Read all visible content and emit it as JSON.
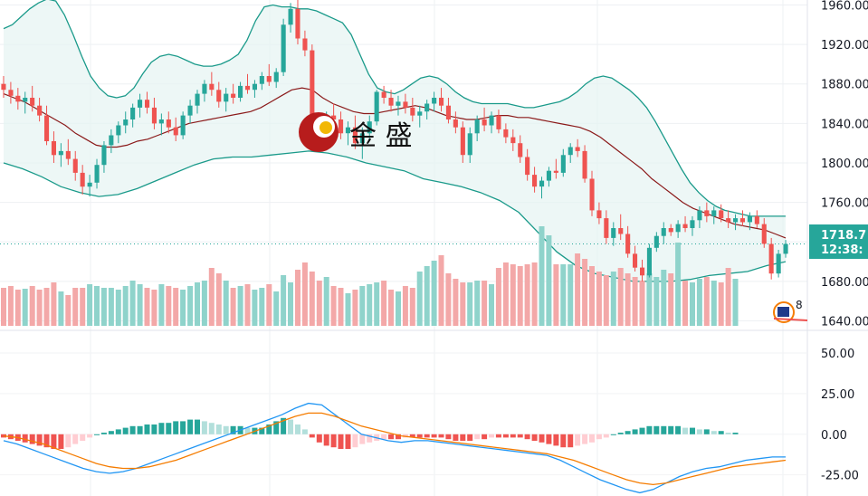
{
  "watermark": {
    "text": "金 盛"
  },
  "price_tag": {
    "price": "1718.7",
    "countdown": "12:38:"
  },
  "events_badge": {
    "count": "8"
  },
  "colors": {
    "up": "#26a69a",
    "down": "#ef5350",
    "up_vol": "#8fd3cb",
    "down_vol": "#f3a8a8",
    "band": "#1a9a8a",
    "basis": "#8b1a1a",
    "macd": "#2196f3",
    "signal": "#f57c00",
    "hist_up_strong": "#26a69a",
    "hist_up_weak": "#b2dfdb",
    "hist_dn_strong": "#ef5350",
    "hist_dn_weak": "#ffcdd2"
  },
  "chart_data": [
    {
      "type": "candlestick",
      "y_ticks": [
        "1960.00",
        "1920.00",
        "1880.00",
        "1840.00",
        "1800.00",
        "1760.00",
        "1720.00",
        "1680.00",
        "1640.00"
      ],
      "ylim": [
        1635,
        1965
      ],
      "ohlc": [
        [
          1880,
          1888,
          1866,
          1874
        ],
        [
          1874,
          1882,
          1860,
          1868
        ],
        [
          1868,
          1876,
          1854,
          1862
        ],
        [
          1862,
          1872,
          1850,
          1866
        ],
        [
          1866,
          1878,
          1852,
          1858
        ],
        [
          1858,
          1866,
          1842,
          1848
        ],
        [
          1848,
          1858,
          1818,
          1822
        ],
        [
          1822,
          1832,
          1800,
          1808
        ],
        [
          1808,
          1820,
          1796,
          1812
        ],
        [
          1812,
          1824,
          1798,
          1804
        ],
        [
          1804,
          1812,
          1782,
          1790
        ],
        [
          1790,
          1798,
          1768,
          1776
        ],
        [
          1776,
          1788,
          1766,
          1780
        ],
        [
          1780,
          1804,
          1774,
          1798
        ],
        [
          1798,
          1822,
          1790,
          1818
        ],
        [
          1818,
          1834,
          1810,
          1828
        ],
        [
          1828,
          1842,
          1820,
          1838
        ],
        [
          1838,
          1852,
          1830,
          1844
        ],
        [
          1844,
          1860,
          1836,
          1856
        ],
        [
          1856,
          1870,
          1846,
          1864
        ],
        [
          1864,
          1872,
          1850,
          1856
        ],
        [
          1856,
          1866,
          1834,
          1840
        ],
        [
          1840,
          1850,
          1828,
          1844
        ],
        [
          1844,
          1852,
          1830,
          1836
        ],
        [
          1836,
          1846,
          1822,
          1828
        ],
        [
          1828,
          1852,
          1824,
          1848
        ],
        [
          1848,
          1864,
          1840,
          1858
        ],
        [
          1858,
          1874,
          1850,
          1870
        ],
        [
          1870,
          1884,
          1862,
          1880
        ],
        [
          1880,
          1892,
          1868,
          1874
        ],
        [
          1874,
          1882,
          1856,
          1862
        ],
        [
          1862,
          1876,
          1852,
          1870
        ],
        [
          1870,
          1880,
          1860,
          1866
        ],
        [
          1866,
          1882,
          1862,
          1878
        ],
        [
          1878,
          1890,
          1870,
          1874
        ],
        [
          1874,
          1884,
          1866,
          1880
        ],
        [
          1880,
          1892,
          1874,
          1888
        ],
        [
          1888,
          1900,
          1878,
          1882
        ],
        [
          1882,
          1896,
          1876,
          1892
        ],
        [
          1892,
          1946,
          1888,
          1940
        ],
        [
          1940,
          1962,
          1932,
          1956
        ],
        [
          1956,
          1966,
          1920,
          1926
        ],
        [
          1926,
          1934,
          1908,
          1914
        ],
        [
          1914,
          1920,
          1836,
          1842
        ],
        [
          1842,
          1850,
          1826,
          1834
        ],
        [
          1834,
          1852,
          1828,
          1848
        ],
        [
          1848,
          1860,
          1836,
          1844
        ],
        [
          1844,
          1852,
          1824,
          1830
        ],
        [
          1830,
          1842,
          1818,
          1836
        ],
        [
          1836,
          1848,
          1814,
          1820
        ],
        [
          1820,
          1836,
          1804,
          1830
        ],
        [
          1830,
          1848,
          1824,
          1842
        ],
        [
          1842,
          1874,
          1838,
          1872
        ],
        [
          1872,
          1878,
          1860,
          1866
        ],
        [
          1866,
          1874,
          1852,
          1858
        ],
        [
          1858,
          1868,
          1848,
          1862
        ],
        [
          1862,
          1870,
          1850,
          1856
        ],
        [
          1856,
          1866,
          1842,
          1848
        ],
        [
          1848,
          1858,
          1836,
          1852
        ],
        [
          1852,
          1864,
          1844,
          1860
        ],
        [
          1860,
          1872,
          1852,
          1866
        ],
        [
          1866,
          1876,
          1852,
          1858
        ],
        [
          1858,
          1866,
          1840,
          1844
        ],
        [
          1844,
          1852,
          1830,
          1836
        ],
        [
          1836,
          1842,
          1800,
          1808
        ],
        [
          1808,
          1836,
          1800,
          1830
        ],
        [
          1830,
          1848,
          1822,
          1844
        ],
        [
          1844,
          1856,
          1832,
          1838
        ],
        [
          1838,
          1852,
          1830,
          1848
        ],
        [
          1848,
          1854,
          1830,
          1834
        ],
        [
          1834,
          1840,
          1820,
          1826
        ],
        [
          1826,
          1834,
          1812,
          1820
        ],
        [
          1820,
          1828,
          1800,
          1806
        ],
        [
          1806,
          1814,
          1782,
          1788
        ],
        [
          1788,
          1796,
          1770,
          1776
        ],
        [
          1776,
          1786,
          1764,
          1782
        ],
        [
          1782,
          1796,
          1776,
          1792
        ],
        [
          1792,
          1804,
          1784,
          1790
        ],
        [
          1790,
          1814,
          1786,
          1808
        ],
        [
          1808,
          1820,
          1800,
          1816
        ],
        [
          1816,
          1824,
          1806,
          1812
        ],
        [
          1812,
          1818,
          1780,
          1784
        ],
        [
          1784,
          1792,
          1746,
          1752
        ],
        [
          1752,
          1760,
          1738,
          1744
        ],
        [
          1744,
          1752,
          1718,
          1724
        ],
        [
          1724,
          1740,
          1716,
          1734
        ],
        [
          1734,
          1748,
          1722,
          1728
        ],
        [
          1728,
          1736,
          1704,
          1708
        ],
        [
          1708,
          1716,
          1690,
          1694
        ],
        [
          1694,
          1702,
          1680,
          1686
        ],
        [
          1686,
          1718,
          1684,
          1714
        ],
        [
          1714,
          1730,
          1710,
          1726
        ],
        [
          1726,
          1740,
          1718,
          1734
        ],
        [
          1734,
          1738,
          1726,
          1730
        ],
        [
          1730,
          1742,
          1724,
          1738
        ],
        [
          1738,
          1746,
          1730,
          1734
        ],
        [
          1734,
          1746,
          1726,
          1742
        ],
        [
          1742,
          1756,
          1734,
          1752
        ],
        [
          1752,
          1760,
          1740,
          1746
        ],
        [
          1746,
          1756,
          1738,
          1752
        ],
        [
          1752,
          1758,
          1740,
          1744
        ],
        [
          1744,
          1752,
          1734,
          1740
        ],
        [
          1740,
          1748,
          1732,
          1744
        ],
        [
          1744,
          1752,
          1736,
          1740
        ],
        [
          1740,
          1750,
          1732,
          1746
        ],
        [
          1746,
          1752,
          1734,
          1738
        ],
        [
          1738,
          1744,
          1714,
          1718
        ],
        [
          1718,
          1724,
          1682,
          1688
        ],
        [
          1688,
          1712,
          1684,
          1708
        ],
        [
          1708,
          1722,
          1704,
          1718
        ]
      ],
      "volume": [
        42,
        44,
        40,
        41,
        44,
        40,
        42,
        48,
        38,
        34,
        42,
        42,
        46,
        44,
        42,
        42,
        40,
        44,
        50,
        46,
        42,
        40,
        46,
        44,
        42,
        40,
        44,
        48,
        50,
        64,
        58,
        50,
        42,
        44,
        46,
        40,
        42,
        46,
        38,
        56,
        48,
        62,
        70,
        60,
        50,
        54,
        44,
        42,
        36,
        40,
        44,
        46,
        48,
        50,
        40,
        38,
        44,
        42,
        60,
        66,
        72,
        78,
        58,
        52,
        48,
        48,
        50,
        50,
        46,
        64,
        70,
        68,
        66,
        68,
        70,
        110,
        100,
        68,
        68,
        68,
        80,
        74,
        66,
        60,
        56,
        60,
        64,
        58,
        54,
        50,
        58,
        54,
        62,
        58,
        92,
        50,
        48,
        52,
        54,
        50,
        48,
        64,
        52
      ],
      "bb_upper": [
        1936,
        1940,
        1948,
        1956,
        1962,
        1966,
        1964,
        1950,
        1930,
        1908,
        1888,
        1876,
        1868,
        1866,
        1868,
        1876,
        1890,
        1902,
        1908,
        1910,
        1908,
        1904,
        1900,
        1898,
        1898,
        1900,
        1904,
        1910,
        1924,
        1944,
        1958,
        1960,
        1958,
        1958,
        1956,
        1956,
        1954,
        1950,
        1946,
        1942,
        1930,
        1910,
        1890,
        1876,
        1872,
        1870,
        1874,
        1880,
        1886,
        1888,
        1886,
        1880,
        1872,
        1866,
        1862,
        1860,
        1860,
        1860,
        1860,
        1858,
        1856,
        1856,
        1858,
        1860,
        1862,
        1866,
        1872,
        1880,
        1886,
        1888,
        1886,
        1880,
        1874,
        1866,
        1856,
        1842,
        1826,
        1810,
        1794,
        1780,
        1770,
        1762,
        1756,
        1752,
        1750,
        1748,
        1746,
        1746,
        1746,
        1746,
        1746
      ],
      "bb_basis": [
        1870,
        1866,
        1862,
        1856,
        1850,
        1844,
        1838,
        1830,
        1824,
        1818,
        1816,
        1816,
        1818,
        1822,
        1824,
        1828,
        1832,
        1836,
        1840,
        1842,
        1844,
        1846,
        1848,
        1850,
        1852,
        1856,
        1862,
        1868,
        1874,
        1876,
        1874,
        1866,
        1860,
        1856,
        1852,
        1850,
        1850,
        1852,
        1854,
        1856,
        1858,
        1856,
        1852,
        1848,
        1846,
        1844,
        1844,
        1846,
        1848,
        1848,
        1846,
        1846,
        1844,
        1842,
        1840,
        1838,
        1836,
        1832,
        1826,
        1818,
        1810,
        1802,
        1794,
        1784,
        1776,
        1768,
        1760,
        1754,
        1750,
        1746,
        1742,
        1738,
        1736,
        1734,
        1732,
        1728,
        1724
      ],
      "bb_lower": [
        1800,
        1794,
        1786,
        1776,
        1770,
        1766,
        1768,
        1774,
        1782,
        1790,
        1798,
        1804,
        1806,
        1806,
        1808,
        1810,
        1812,
        1810,
        1806,
        1800,
        1796,
        1792,
        1784,
        1780,
        1776,
        1770,
        1762,
        1750,
        1730,
        1710,
        1696,
        1688,
        1684,
        1680,
        1680,
        1680,
        1682,
        1686,
        1688,
        1690,
        1696,
        1700
      ]
    },
    {
      "type": "macd",
      "y_ticks": [
        "50.00",
        "25.00",
        "0.00",
        "-25.00"
      ],
      "ylim": [
        -38,
        60
      ],
      "hist": [
        -2,
        -3,
        -4,
        -5,
        -6,
        -7,
        -8,
        -9,
        -9,
        -8,
        -6,
        -4,
        -2,
        0,
        1,
        2,
        3,
        4,
        5,
        5,
        6,
        6,
        7,
        7,
        8,
        8,
        9,
        9,
        8,
        7,
        6,
        5,
        5,
        5,
        4,
        4,
        4,
        6,
        8,
        10,
        9,
        6,
        3,
        -2,
        -5,
        -7,
        -8,
        -9,
        -9,
        -8,
        -6,
        -5,
        -4,
        -3,
        -3,
        -3,
        -2,
        -2,
        -2,
        -2,
        -2,
        -2,
        -3,
        -4,
        -4,
        -4,
        -3,
        -3,
        -2,
        -2,
        -2,
        -2,
        -2,
        -3,
        -4,
        -5,
        -6,
        -7,
        -8,
        -8,
        -7,
        -6,
        -5,
        -3,
        -2,
        0,
        1,
        2,
        3,
        4,
        5,
        5,
        5,
        5,
        5,
        4,
        4,
        3,
        3,
        2,
        2,
        1,
        1
      ],
      "macd": [
        -4,
        -6,
        -9,
        -12,
        -15,
        -18,
        -21,
        -23,
        -24,
        -23,
        -21,
        -18,
        -15,
        -12,
        -9,
        -6,
        -3,
        0,
        3,
        6,
        9,
        12,
        16,
        19,
        18,
        12,
        6,
        0,
        -2,
        -4,
        -5,
        -4,
        -4,
        -5,
        -6,
        -7,
        -8,
        -9,
        -10,
        -11,
        -12,
        -13,
        -16,
        -20,
        -24,
        -28,
        -31,
        -34,
        -36,
        -34,
        -30,
        -26,
        -23,
        -21,
        -20,
        -18,
        -16,
        -15,
        -14,
        -14
      ],
      "signal": [
        -1,
        -2,
        -4,
        -6,
        -9,
        -12,
        -15,
        -18,
        -20,
        -21,
        -21,
        -20,
        -18,
        -16,
        -13,
        -10,
        -7,
        -4,
        -1,
        2,
        5,
        8,
        11,
        13,
        13,
        11,
        8,
        5,
        3,
        1,
        -1,
        -2,
        -3,
        -4,
        -5,
        -6,
        -7,
        -8,
        -9,
        -10,
        -11,
        -12,
        -14,
        -16,
        -19,
        -22,
        -25,
        -28,
        -30,
        -31,
        -30,
        -28,
        -26,
        -24,
        -22,
        -20,
        -19,
        -18,
        -17,
        -16
      ]
    }
  ]
}
